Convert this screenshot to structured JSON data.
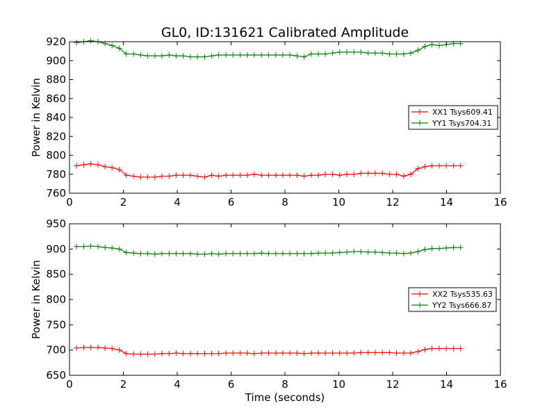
{
  "figure_title": "GL0, ID:131621 Calibrated Amplitude",
  "chart_data": [
    {
      "type": "line",
      "ylabel": "Power in Kelvin",
      "xlabel": "",
      "xlim": [
        0,
        16
      ],
      "ylim": [
        760,
        920
      ],
      "xticks": [
        0,
        2,
        4,
        6,
        8,
        10,
        12,
        14,
        16
      ],
      "yticks": [
        760,
        780,
        800,
        820,
        840,
        860,
        880,
        900,
        920
      ],
      "legend_position": "center-right",
      "x": [
        0.26,
        0.53,
        0.79,
        1.06,
        1.32,
        1.58,
        1.85,
        2.11,
        2.38,
        2.64,
        2.9,
        3.17,
        3.43,
        3.7,
        3.96,
        4.22,
        4.49,
        4.75,
        5.02,
        5.28,
        5.54,
        5.81,
        6.07,
        6.34,
        6.6,
        6.86,
        7.13,
        7.39,
        7.66,
        7.92,
        8.18,
        8.45,
        8.71,
        8.98,
        9.24,
        9.5,
        9.77,
        10.03,
        10.3,
        10.56,
        10.82,
        11.09,
        11.35,
        11.62,
        11.88,
        12.14,
        12.41,
        12.67,
        12.94,
        13.2,
        13.46,
        13.73,
        13.99,
        14.26,
        14.52
      ],
      "series": [
        {
          "name": "XX1 Tsys609.41",
          "color": "#ff0000",
          "values": [
            789,
            790,
            791,
            790,
            788,
            787,
            785,
            779,
            778,
            777,
            777,
            777,
            778,
            778,
            779,
            779,
            779,
            778,
            777,
            779,
            778,
            779,
            779,
            779,
            779,
            780,
            779,
            779,
            779,
            779,
            779,
            779,
            778,
            779,
            779,
            780,
            780,
            779,
            780,
            780,
            781,
            781,
            781,
            781,
            780,
            780,
            778,
            780,
            786,
            788,
            789,
            789,
            789,
            789,
            789
          ]
        },
        {
          "name": "YY1 Tsys704.31",
          "color": "#008000",
          "values": [
            919,
            920,
            921,
            920,
            918,
            916,
            913,
            907,
            907,
            906,
            905,
            905,
            905,
            906,
            905,
            905,
            904,
            904,
            904,
            905,
            906,
            906,
            906,
            906,
            906,
            906,
            906,
            906,
            906,
            906,
            906,
            905,
            904,
            907,
            907,
            907,
            908,
            909,
            909,
            909,
            909,
            908,
            908,
            908,
            907,
            907,
            907,
            908,
            911,
            915,
            917,
            916,
            917,
            918,
            918
          ]
        }
      ]
    },
    {
      "type": "line",
      "ylabel": "Power in Kelvin",
      "xlabel": "Time (seconds)",
      "xlim": [
        0,
        16
      ],
      "ylim": [
        650,
        950
      ],
      "xticks": [
        0,
        2,
        4,
        6,
        8,
        10,
        12,
        14,
        16
      ],
      "yticks": [
        650,
        700,
        750,
        800,
        850,
        900,
        950
      ],
      "legend_position": "center-right",
      "x": [
        0.26,
        0.53,
        0.79,
        1.06,
        1.32,
        1.58,
        1.85,
        2.11,
        2.38,
        2.64,
        2.9,
        3.17,
        3.43,
        3.7,
        3.96,
        4.22,
        4.49,
        4.75,
        5.02,
        5.28,
        5.54,
        5.81,
        6.07,
        6.34,
        6.6,
        6.86,
        7.13,
        7.39,
        7.66,
        7.92,
        8.18,
        8.45,
        8.71,
        8.98,
        9.24,
        9.5,
        9.77,
        10.03,
        10.3,
        10.56,
        10.82,
        11.09,
        11.35,
        11.62,
        11.88,
        12.14,
        12.41,
        12.67,
        12.94,
        13.2,
        13.46,
        13.73,
        13.99,
        14.26,
        14.52
      ],
      "series": [
        {
          "name": "XX2 Tsys535.63",
          "color": "#ff0000",
          "values": [
            704,
            705,
            705,
            705,
            704,
            703,
            700,
            693,
            692,
            692,
            692,
            692,
            693,
            693,
            694,
            693,
            693,
            693,
            693,
            693,
            693,
            694,
            694,
            694,
            694,
            693,
            694,
            694,
            694,
            694,
            694,
            694,
            693,
            694,
            694,
            694,
            694,
            694,
            694,
            694,
            695,
            695,
            695,
            695,
            695,
            694,
            694,
            694,
            697,
            701,
            703,
            703,
            703,
            703,
            703
          ]
        },
        {
          "name": "YY2 Tsys666.87",
          "color": "#008000",
          "values": [
            905,
            905,
            906,
            905,
            903,
            902,
            900,
            893,
            892,
            891,
            891,
            890,
            891,
            891,
            891,
            891,
            891,
            890,
            890,
            891,
            890,
            891,
            891,
            891,
            891,
            891,
            892,
            891,
            891,
            891,
            891,
            891,
            891,
            891,
            892,
            892,
            892,
            893,
            894,
            895,
            895,
            894,
            894,
            893,
            892,
            892,
            891,
            892,
            895,
            899,
            901,
            901,
            902,
            903,
            903
          ]
        }
      ]
    }
  ]
}
